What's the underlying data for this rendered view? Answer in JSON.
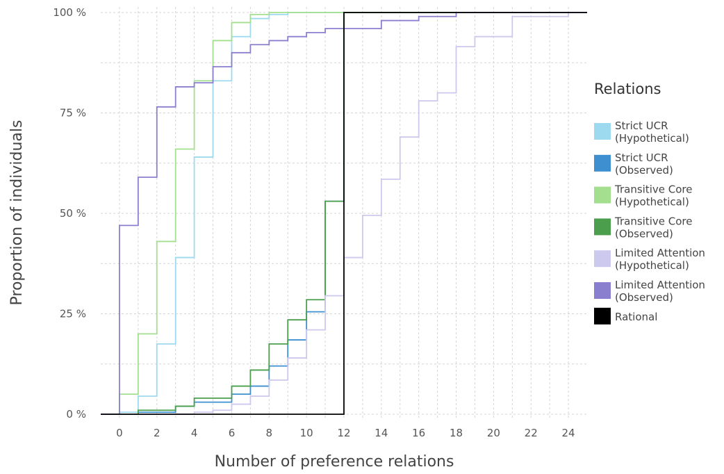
{
  "chart_data": {
    "type": "line",
    "step": true,
    "xlabel": "Number of preference relations",
    "ylabel": "Proportion of individuals",
    "xlim": [
      -1,
      25
    ],
    "ylim": [
      0,
      100
    ],
    "x_ticks": [
      0,
      2,
      4,
      6,
      8,
      10,
      12,
      14,
      16,
      18,
      20,
      22,
      24
    ],
    "y_ticks": [
      0,
      25,
      50,
      75,
      100
    ],
    "y_tick_labels": [
      "0 %",
      "25 %",
      "50 %",
      "75 %",
      "100 %"
    ],
    "grid": true,
    "legend": {
      "title": "Relations",
      "position": "right"
    },
    "series": [
      {
        "name": "Strict UCR\n(Hypothetical)",
        "color": "#9dd9ef",
        "x": [
          -1,
          0,
          1,
          2,
          3,
          4,
          5,
          6,
          7,
          8,
          9,
          25
        ],
        "y": [
          0,
          0.5,
          4.5,
          17.5,
          39,
          64,
          83,
          94,
          98.5,
          99.5,
          100,
          100
        ]
      },
      {
        "name": "Strict UCR\n(Observed)",
        "color": "#3d8fcf",
        "x": [
          -1,
          0,
          1,
          2,
          3,
          4,
          5,
          6,
          7,
          8,
          9,
          10,
          11,
          12,
          25
        ],
        "y": [
          0,
          0,
          0.5,
          0.5,
          2,
          3,
          3,
          5,
          7,
          12,
          18.5,
          25.5,
          53,
          100,
          100
        ]
      },
      {
        "name": "Transitive Core\n(Hypothetical)",
        "color": "#a3df8f",
        "x": [
          -1,
          0,
          1,
          2,
          3,
          4,
          5,
          6,
          7,
          8,
          9,
          25
        ],
        "y": [
          0,
          5,
          20,
          43,
          66,
          83,
          93,
          97.5,
          99.5,
          100,
          100,
          100
        ]
      },
      {
        "name": "Transitive Core\n(Observed)",
        "color": "#4a9e4c",
        "x": [
          -1,
          0,
          1,
          2,
          3,
          4,
          5,
          6,
          7,
          8,
          9,
          10,
          11,
          12,
          25
        ],
        "y": [
          0,
          0,
          1,
          1,
          2,
          4,
          4,
          7,
          11,
          17.5,
          23.5,
          28.5,
          53,
          100,
          100
        ]
      },
      {
        "name": "Limited Attention\n(Hypothetical)",
        "color": "#cdc8ee",
        "x": [
          -1,
          0,
          3,
          4,
          5,
          6,
          7,
          8,
          9,
          10,
          11,
          12,
          13,
          14,
          15,
          16,
          17,
          18,
          19,
          20,
          21,
          22,
          23,
          24,
          25
        ],
        "y": [
          0,
          0,
          0,
          0.5,
          1,
          2.5,
          4.5,
          8.5,
          14,
          21,
          29.5,
          39,
          49.5,
          58.5,
          69,
          78,
          80,
          91.5,
          94,
          94,
          99,
          99,
          99,
          100,
          100
        ]
      },
      {
        "name": "Limited Attention\n(Observed)",
        "color": "#8a7fcf",
        "x": [
          -1,
          0,
          1,
          2,
          3,
          4,
          5,
          6,
          7,
          8,
          9,
          10,
          11,
          13,
          14,
          15,
          16,
          17,
          18,
          25
        ],
        "y": [
          0,
          47,
          59,
          76.5,
          81.5,
          82.5,
          86.5,
          90,
          92,
          93,
          94,
          95,
          96,
          96,
          98,
          98,
          99,
          99,
          100,
          100
        ]
      },
      {
        "name": "Rational",
        "color": "#000000",
        "x": [
          -1,
          12,
          25
        ],
        "y": [
          0,
          100,
          100
        ]
      }
    ]
  }
}
